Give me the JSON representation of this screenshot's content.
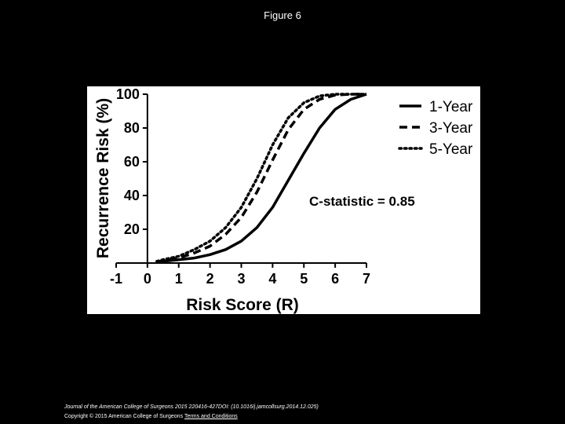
{
  "slide": {
    "title": "Figure 6"
  },
  "footer": {
    "citation": "Journal of the American College of Surgeons 2015 220416-427DOI: (10.1016/j.jamcollsurg.2014.12.025)",
    "copyright": "Copyright © 2015 American College of Surgeons",
    "terms_link": "Terms and Conditions"
  },
  "chart_data": {
    "type": "line",
    "title": "",
    "xlabel": "Risk Score (R)",
    "ylabel": "Recurrence Risk (%)",
    "xlim": [
      -1,
      7
    ],
    "ylim": [
      0,
      100
    ],
    "x_ticks": [
      -1,
      0,
      1,
      2,
      3,
      4,
      5,
      6,
      7
    ],
    "y_ticks": [
      20,
      40,
      60,
      80,
      100
    ],
    "grid": false,
    "legend_position": "top-right",
    "annotation": "C-statistic = 0.85",
    "x": [
      0.3,
      0.5,
      1.0,
      1.5,
      2.0,
      2.5,
      3.0,
      3.5,
      4.0,
      4.5,
      5.0,
      5.5,
      6.0,
      6.5,
      7.0
    ],
    "series": [
      {
        "name": "1-Year",
        "style": "solid",
        "values": [
          0.5,
          1,
          2,
          3,
          5,
          8,
          13,
          21,
          33,
          49,
          65,
          80,
          91,
          97,
          100
        ]
      },
      {
        "name": "3-Year",
        "style": "dashed",
        "values": [
          0.5,
          1.5,
          3,
          6,
          10,
          17,
          27,
          42,
          61,
          79,
          91,
          97,
          99.5,
          100,
          100
        ]
      },
      {
        "name": "5-Year",
        "style": "dotted",
        "values": [
          1,
          2,
          4,
          8,
          13,
          21,
          33,
          50,
          70,
          86,
          95,
          99,
          100,
          100,
          100
        ]
      }
    ]
  }
}
